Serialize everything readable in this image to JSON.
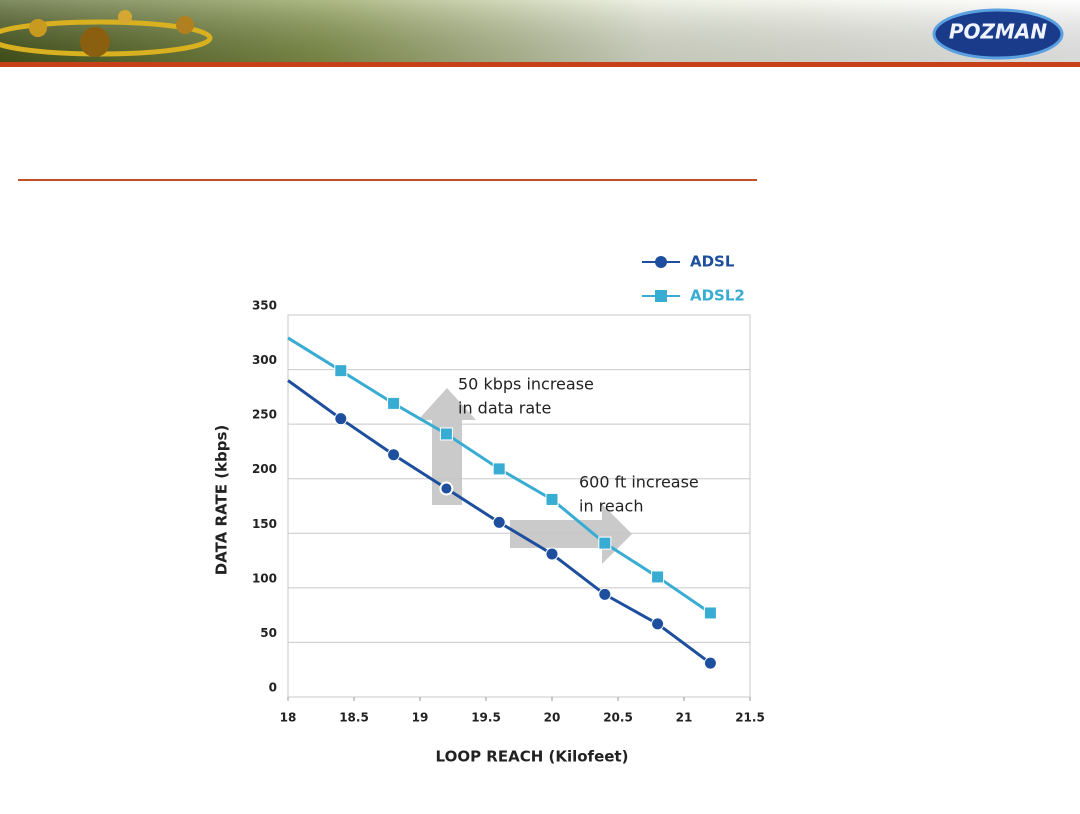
{
  "header": {
    "logo": "POZMAN"
  },
  "chart_data": {
    "type": "line",
    "x_label": "LOOP REACH (Kilofeet)",
    "y_label": "DATA RATE (kbps)",
    "xlim": [
      18,
      21.5
    ],
    "xticks": [
      18,
      18.5,
      19,
      19.5,
      20,
      20.5,
      21,
      21.5
    ],
    "ylim": [
      0,
      350
    ],
    "yticks": [
      0,
      50,
      100,
      150,
      200,
      250,
      300,
      350
    ],
    "grid": true,
    "legend": "top-right",
    "series": [
      {
        "name": "ADSL",
        "color": "#1d4f9e",
        "marker": "circle",
        "x": [
          18,
          18.4,
          18.8,
          19.2,
          19.6,
          20.0,
          20.4,
          20.8,
          21.2
        ],
        "values": [
          290,
          255,
          222,
          191,
          160,
          131,
          94,
          67,
          31
        ]
      },
      {
        "name": "ADSL2",
        "color": "#38acd2",
        "marker": "square",
        "x": [
          18,
          18.4,
          18.8,
          19.2,
          19.6,
          20.0,
          20.4,
          20.8,
          21.2
        ],
        "values": [
          329,
          299,
          269,
          241,
          209,
          181,
          141,
          110,
          77
        ]
      }
    ],
    "annotations": [
      {
        "lines": [
          "50 kbps increase",
          "in data rate"
        ]
      },
      {
        "lines": [
          "600 ft increase",
          "in reach"
        ]
      }
    ]
  }
}
